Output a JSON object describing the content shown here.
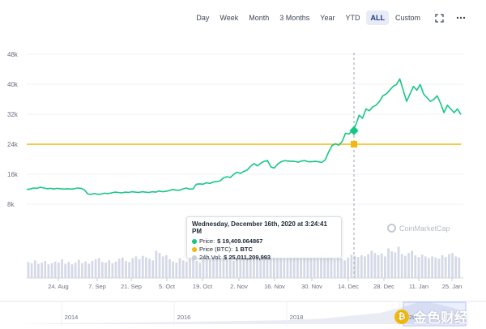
{
  "toolbar": {
    "ranges": [
      "Day",
      "Week",
      "Month",
      "3 Months",
      "Year",
      "YTD",
      "ALL",
      "Custom"
    ],
    "active": "ALL",
    "fullscreen_icon": "expand-icon",
    "menu_icon": "more-horizontal-icon"
  },
  "colors": {
    "price_line": "#16c784",
    "btc_line": "#f0b90b",
    "volume_bar": "#d5d9e6",
    "grid": "#eef0f4",
    "crosshair": "#9aa3b2"
  },
  "tooltip": {
    "title": "Wednesday, December 16th, 2020 at 3:24:41 PM",
    "price_label": "Price:",
    "price_value": "$ 19,409.064867",
    "btc_label": "Price (BTC):",
    "btc_value": "1 BTC",
    "vol_label": "24h Vol:",
    "vol_value": "$ 25,011,209,993"
  },
  "watermark": "CoinMarketCap",
  "overlay_logo": "金色财经",
  "chart_data": {
    "type": "line",
    "y_ticks": [
      "48k",
      "40k",
      "32k",
      "24k",
      "16k",
      "8k"
    ],
    "y_tick_values": [
      48000,
      40000,
      32000,
      24000,
      16000,
      8000
    ],
    "ylim": [
      0,
      48000
    ],
    "x_ticks": [
      "24. Aug",
      "7. Sep",
      "21. Sep",
      "5. Oct",
      "19. Oct",
      "2. Nov",
      "16. Nov",
      "30. Nov",
      "14. Dec",
      "28. Dec",
      "11. Jan",
      "25. Jan"
    ],
    "navigator_ticks": [
      "2014",
      "2016",
      "2018",
      "2020"
    ],
    "btc_price_level": 24000,
    "highlight_date": "14. Dec",
    "series": [
      {
        "name": "Price",
        "values": [
          11500,
          11600,
          11900,
          11800,
          12100,
          11900,
          11700,
          11800,
          11600,
          11800,
          11700,
          11600,
          11700,
          11600,
          11700,
          11900,
          11800,
          11400,
          10300,
          10200,
          10400,
          10200,
          10300,
          10500,
          10400,
          10600,
          10800,
          10700,
          10600,
          10800,
          10700,
          10900,
          10800,
          10700,
          10900,
          10800,
          10700,
          10900,
          10800,
          11100,
          10900,
          11000,
          11200,
          11500,
          11300,
          11300,
          11600,
          11900,
          11600,
          11600,
          12900,
          13000,
          12900,
          13300,
          13100,
          13500,
          13600,
          13800,
          14600,
          14900,
          14700,
          15500,
          16100,
          15800,
          16300,
          16700,
          17700,
          18400,
          17800,
          18500,
          19000,
          19200,
          17500,
          17200,
          18300,
          18900,
          19200,
          19100,
          19000,
          19000,
          18800,
          19100,
          19200,
          18900,
          18900,
          19000,
          18900,
          18700,
          19400,
          21500,
          23200,
          23700,
          23300,
          24300,
          26500,
          26300,
          27200,
          28700,
          31300,
          30500,
          33000,
          32500,
          33500,
          34000,
          35000,
          36500,
          37000,
          38000,
          39000,
          39500,
          41000,
          38000,
          35000,
          37000,
          39000,
          38000,
          39500,
          37000,
          36000,
          35000,
          35500,
          36500,
          34500,
          32000,
          34000,
          33000,
          32000,
          33000,
          31500
        ]
      }
    ],
    "volume_values": [
      28,
      26,
      31,
      25,
      27,
      30,
      24,
      26,
      29,
      27,
      33,
      25,
      28,
      24,
      27,
      32,
      26,
      29,
      25,
      30,
      33,
      35,
      28,
      27,
      31,
      26,
      29,
      34,
      36,
      30,
      28,
      35,
      38,
      33,
      39,
      36,
      34,
      31,
      48,
      44,
      38,
      40,
      33,
      29,
      27,
      35,
      31,
      29,
      33,
      36,
      30,
      27,
      34,
      45,
      39,
      37,
      35,
      42,
      38,
      33,
      31,
      30,
      34,
      44,
      38,
      35,
      40,
      37,
      33,
      40,
      38,
      36,
      45,
      50,
      41,
      36,
      34,
      38,
      42,
      40,
      37,
      35,
      39,
      44,
      41,
      38,
      35,
      40,
      42,
      37,
      35,
      33,
      38,
      34,
      31,
      36,
      41,
      39,
      37,
      40,
      38,
      42,
      48,
      44,
      40,
      43,
      38,
      52,
      47,
      45,
      55,
      42,
      39,
      44,
      48,
      40,
      37,
      41,
      38,
      35,
      38,
      36,
      34,
      40,
      37,
      42,
      44,
      38,
      36
    ]
  }
}
